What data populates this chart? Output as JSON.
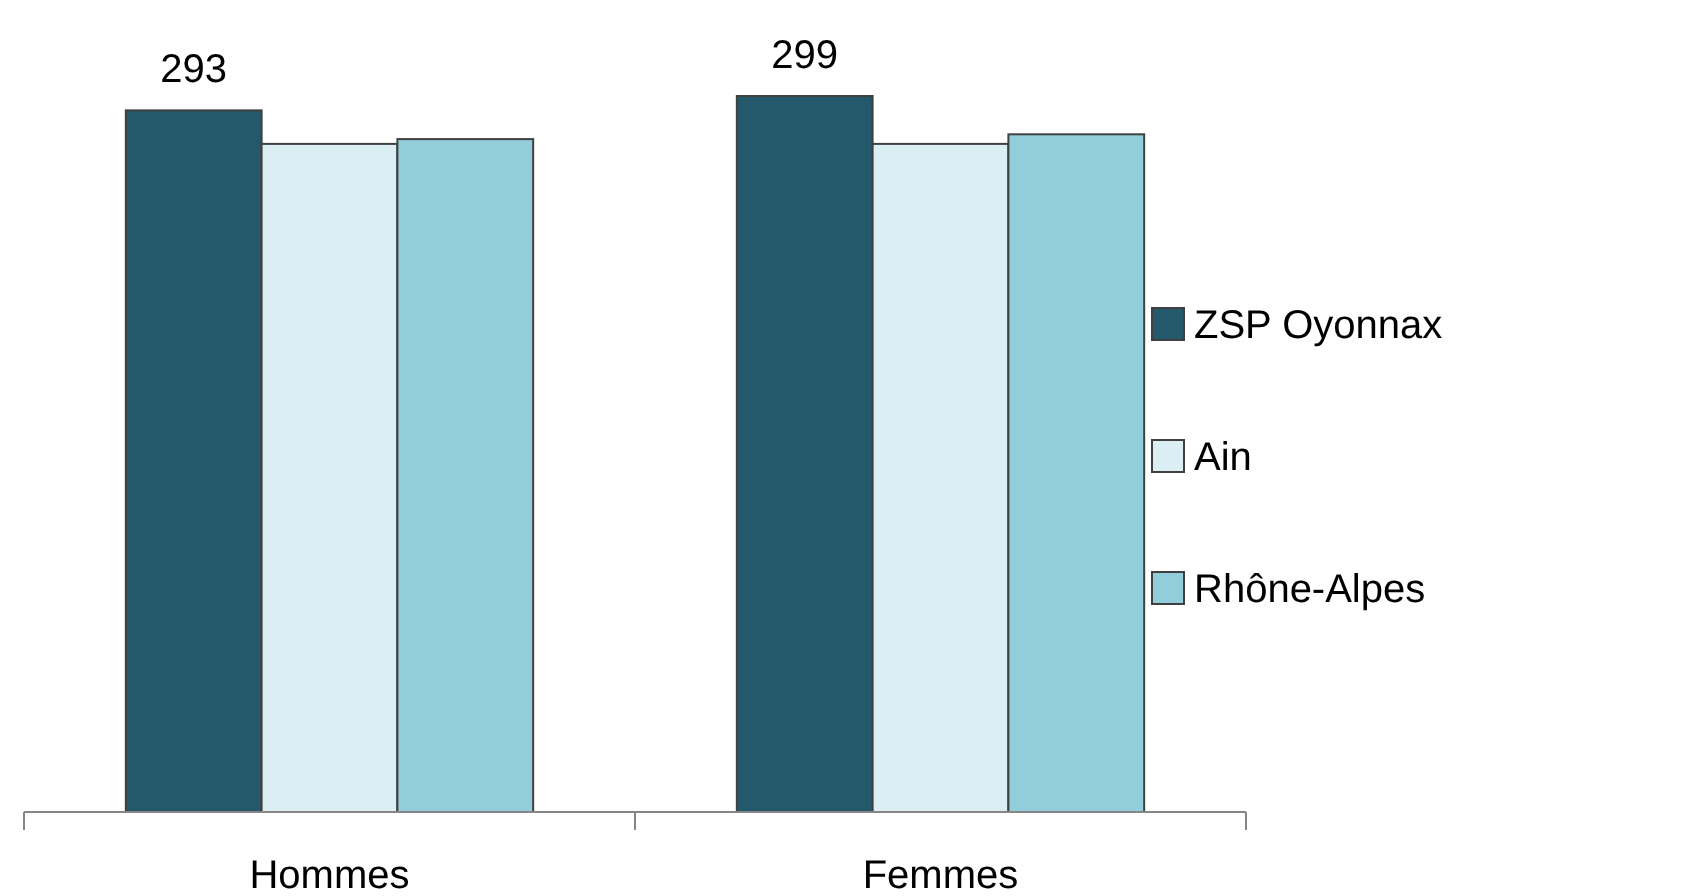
{
  "chart_data": {
    "type": "bar",
    "categories": [
      "Hommes",
      "Femmes"
    ],
    "series": [
      {
        "name": "ZSP Oyonnax",
        "color": "#23596a",
        "values": [
          293,
          299
        ],
        "value_labels": [
          "293",
          "299"
        ]
      },
      {
        "name": "Ain",
        "color": "#daeef3",
        "values": [
          279,
          279
        ]
      },
      {
        "name": "Rhône-Alpes",
        "color": "#92cddc",
        "values": [
          281,
          283
        ]
      }
    ],
    "legend": "right",
    "grid": false
  }
}
